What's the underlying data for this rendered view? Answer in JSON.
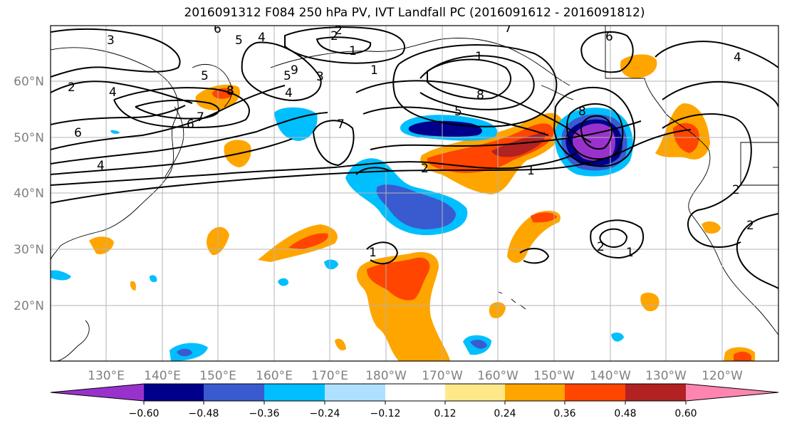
{
  "title": "2016091312 F084 250 hPa PV, IVT Landfall PC (2016091612 - 2016091812)",
  "longitude_labels": [
    "130°E",
    "140°E",
    "150°E",
    "160°E",
    "170°E",
    "180°W",
    "170°W",
    "160°W",
    "150°W",
    "140°W",
    "130°W",
    "120°W"
  ],
  "latitude_labels": [
    "60°N",
    "50°N",
    "40°N",
    "30°N",
    "20°N"
  ],
  "contour_labels": [
    "3",
    "2",
    "5",
    "4",
    "2",
    "1",
    "6",
    "1",
    "6",
    "4",
    "2",
    "4",
    "5",
    "6",
    "7",
    "8",
    "9",
    "3",
    "7",
    "6",
    "4",
    "5",
    "4",
    "8",
    "5",
    "8",
    "7",
    "1",
    "2",
    "2",
    "1",
    "1",
    "2",
    "1",
    "2"
  ],
  "colorbar": {
    "tick_labels": [
      "−0.60",
      "−0.48",
      "−0.36",
      "−0.24",
      "−0.12",
      "0.12",
      "0.24",
      "0.36",
      "0.48",
      "0.60"
    ],
    "bin_colors": [
      "#9932cc",
      "#00008b",
      "#3a5bcf",
      "#00bfff",
      "#b0e0ff",
      "#ffffff",
      "#ffe88a",
      "#ffa500",
      "#ff4500",
      "#b22222",
      "#ff85b0"
    ]
  },
  "shading_colors": {
    "neg_060": "#9932cc",
    "neg_048": "#00008b",
    "neg_036": "#3a5bcf",
    "neg_024": "#00bfff",
    "neg_012": "#b0e0ff",
    "pos_012": "#ffe88a",
    "pos_024": "#ffa500",
    "pos_036": "#ff4500",
    "pos_048": "#b22222",
    "pos_060": "#ff85b0"
  }
}
